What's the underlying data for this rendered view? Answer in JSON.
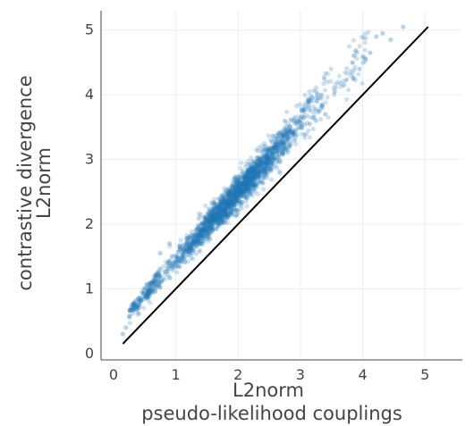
{
  "chart_data": {
    "type": "scatter",
    "x_title_lines": [
      "L2norm",
      "pseudo-likelihood couplings"
    ],
    "y_title_lines": [
      "contrastive divergence",
      "L2norm"
    ],
    "xlim": [
      -0.2,
      5.6
    ],
    "ylim": [
      -0.1,
      5.3
    ],
    "x_ticks": [
      0,
      1,
      2,
      3,
      4,
      5
    ],
    "y_ticks": [
      0,
      1,
      2,
      3,
      4,
      5
    ],
    "grid": true,
    "point_color": "#1f77b4",
    "point_opacity": 0.22,
    "reference_line": {
      "name": "y = x",
      "from": [
        0.15,
        0.15
      ],
      "to": [
        5.05,
        5.05
      ],
      "color": "#000000"
    },
    "trend": {
      "description": "points follow y ≈ 1.07*x + 0.36 with noise; dense cluster between x = 1.2 and 2.8",
      "x_range": [
        0.15,
        4.65
      ],
      "n_points": 2200
    },
    "outliers": [
      [
        4.65,
        5.05
      ],
      [
        4.45,
        4.85
      ],
      [
        4.32,
        4.95
      ],
      [
        4.22,
        4.9
      ],
      [
        4.12,
        4.65
      ],
      [
        4.05,
        4.55
      ],
      [
        3.95,
        4.4
      ],
      [
        3.85,
        4.25
      ],
      [
        3.7,
        4.15
      ],
      [
        3.55,
        4.05
      ],
      [
        3.35,
        3.85
      ],
      [
        3.4,
        3.7
      ],
      [
        3.25,
        3.6
      ],
      [
        3.15,
        3.55
      ],
      [
        0.15,
        0.3
      ],
      [
        0.2,
        0.4
      ],
      [
        0.75,
        1.55
      ],
      [
        0.9,
        1.7
      ]
    ]
  }
}
